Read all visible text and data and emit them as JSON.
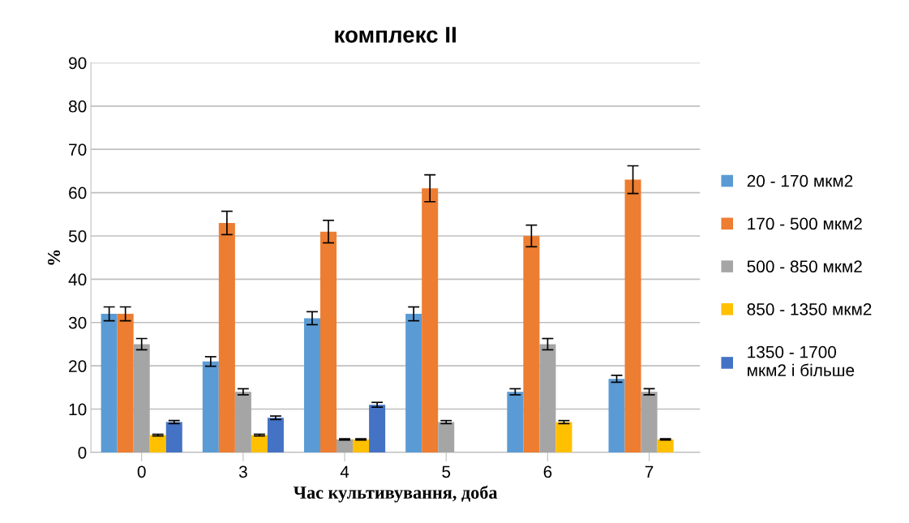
{
  "chart_data": {
    "type": "bar",
    "title": "комплекс II",
    "xlabel": "Час культивування, доба",
    "ylabel": "%",
    "categories": [
      "0",
      "3",
      "4",
      "5",
      "6",
      "7"
    ],
    "series": [
      {
        "name": "20 - 170 мкм2",
        "color": "#5b9bd5",
        "values": [
          32,
          21,
          31,
          32,
          14,
          17
        ],
        "errors": [
          1.6,
          1.1,
          1.5,
          1.6,
          0.7,
          0.8
        ]
      },
      {
        "name": "170 - 500 мкм2",
        "color": "#ed7d31",
        "values": [
          32,
          53,
          51,
          61,
          50,
          63
        ],
        "errors": [
          1.6,
          2.7,
          2.6,
          3.1,
          2.5,
          3.2
        ]
      },
      {
        "name": "500 - 850 мкм2",
        "color": "#a5a5a5",
        "values": [
          25,
          14,
          3,
          7,
          25,
          14
        ],
        "errors": [
          1.3,
          0.7,
          0.15,
          0.35,
          1.3,
          0.7
        ]
      },
      {
        "name": "850 - 1350 мкм2",
        "color": "#ffc000",
        "values": [
          4,
          4,
          3,
          null,
          7,
          3
        ],
        "errors": [
          0.2,
          0.2,
          0.15,
          null,
          0.35,
          0.15
        ]
      },
      {
        "name": "1350 - 1700 мкм2 і більше",
        "color": "#4472c4",
        "values": [
          7,
          8,
          11,
          null,
          null,
          null
        ],
        "errors": [
          0.35,
          0.4,
          0.55,
          null,
          null,
          null
        ]
      }
    ],
    "ylim": [
      0,
      90
    ],
    "yticks": [
      0,
      10,
      20,
      30,
      40,
      50,
      60,
      70,
      80,
      90
    ],
    "grid": "y",
    "legend": "right"
  }
}
